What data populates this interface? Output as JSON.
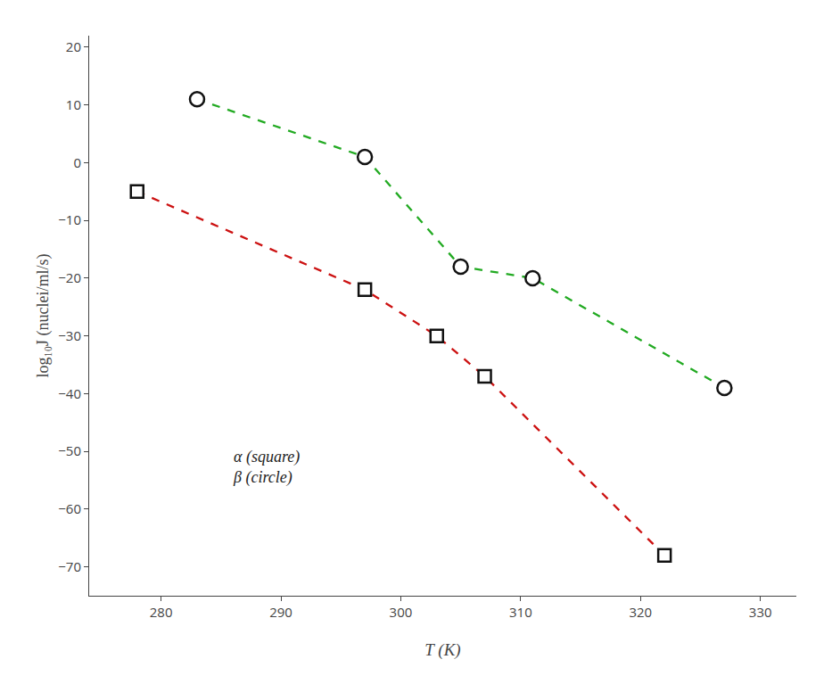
{
  "chart_data": {
    "type": "line",
    "x_label": "T (K)",
    "y_label": "log₁₀J (nuclei/ml/s)",
    "series": [
      {
        "x": [
          278,
          297,
          303,
          307,
          322
        ],
        "values": [
          -5,
          -22,
          -30,
          -37,
          -68
        ],
        "color": "#cc1111",
        "marker": "square",
        "line_style": "dashed"
      },
      {
        "x": [
          283,
          297,
          305,
          311,
          327
        ],
        "values": [
          11,
          1,
          -18,
          -20,
          -39
        ],
        "color": "#22aa22",
        "marker": "circle",
        "line_style": "dashed"
      }
    ],
    "xlim": [
      274,
      333
    ],
    "ylim": [
      -75,
      22
    ],
    "xticks": [
      280,
      290,
      300,
      310,
      320,
      330
    ],
    "yticks": [
      20,
      10,
      0,
      {
        "value": -10,
        "label": "−10"
      },
      {
        "value": -20,
        "label": "−20"
      },
      {
        "value": -30,
        "label": "−30"
      },
      {
        "value": -40,
        "label": "−40"
      },
      {
        "value": -50,
        "label": "−50"
      },
      {
        "value": -60,
        "label": "−60"
      },
      {
        "value": -70,
        "label": "−70"
      }
    ],
    "annotations": [
      {
        "text": "α (square)\nβ (circle)"
      }
    ],
    "grid": false
  }
}
